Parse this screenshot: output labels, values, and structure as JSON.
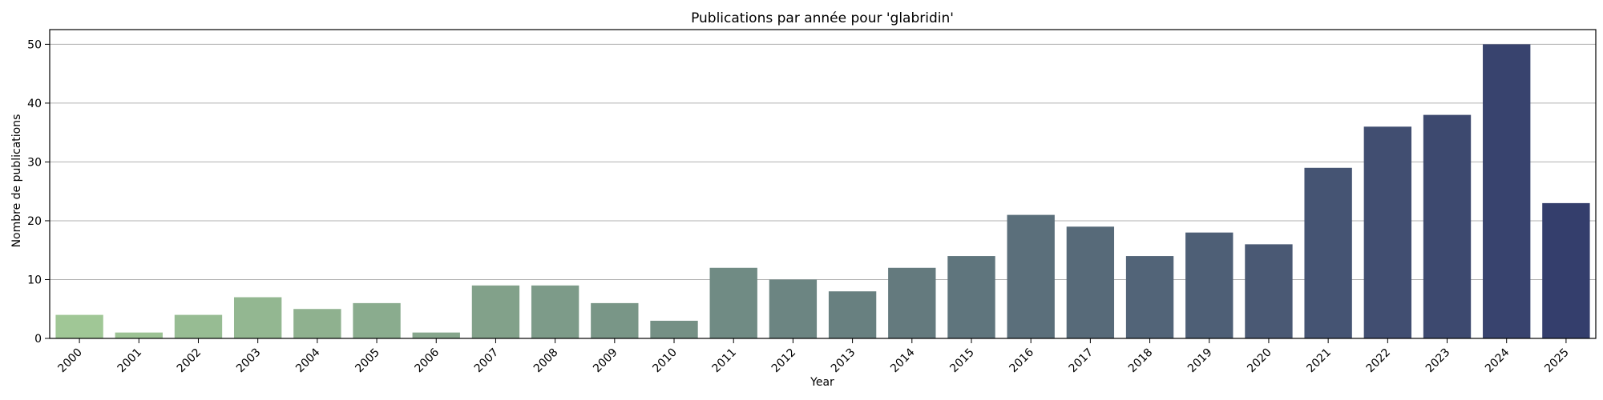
{
  "chart_data": {
    "type": "bar",
    "title": "Publications par année pour 'glabridin'",
    "xlabel": "Year",
    "ylabel": "Nombre de publications",
    "categories": [
      "2000",
      "2001",
      "2002",
      "2003",
      "2004",
      "2005",
      "2006",
      "2007",
      "2008",
      "2009",
      "2010",
      "2011",
      "2012",
      "2013",
      "2014",
      "2015",
      "2016",
      "2017",
      "2018",
      "2019",
      "2020",
      "2021",
      "2022",
      "2023",
      "2024",
      "2025"
    ],
    "values": [
      4,
      1,
      4,
      7,
      5,
      6,
      1,
      9,
      9,
      6,
      3,
      12,
      10,
      8,
      12,
      14,
      21,
      19,
      14,
      18,
      16,
      29,
      36,
      38,
      50,
      23
    ],
    "ylim": [
      0,
      52.5
    ],
    "yticks": [
      0,
      10,
      20,
      30,
      40,
      50
    ],
    "grid": "horizontal",
    "palette": "crest",
    "colors": [
      "#a0c796",
      "#343e6c"
    ],
    "xtick_rotation": 45
  }
}
